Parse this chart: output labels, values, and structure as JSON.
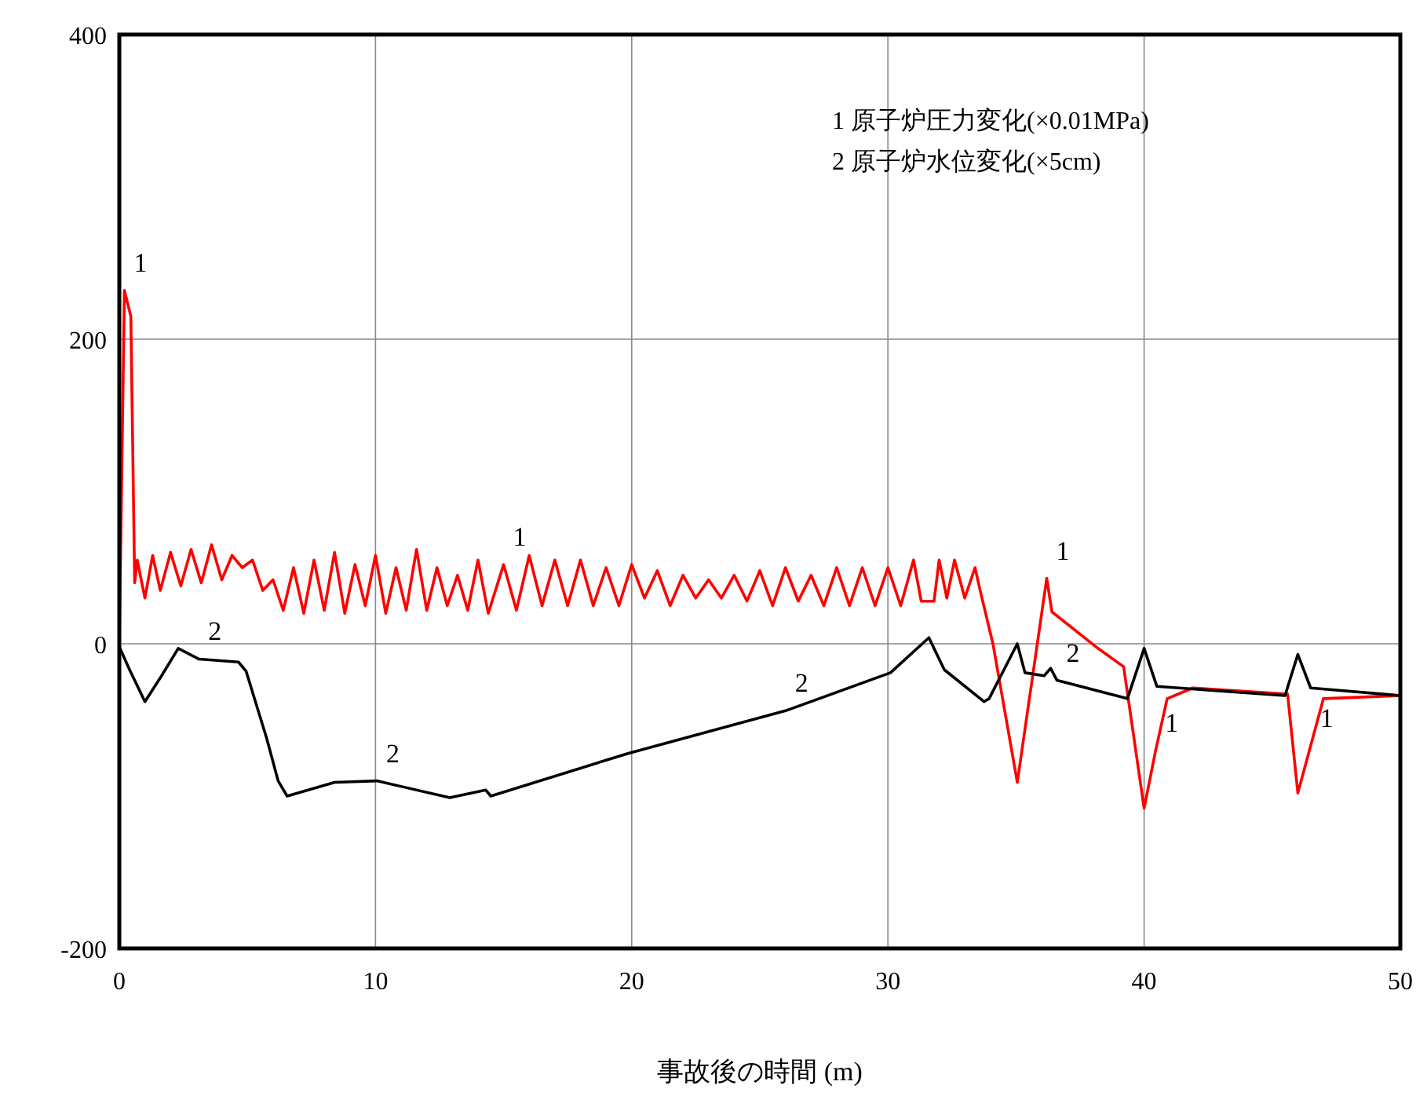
{
  "chart_data": {
    "type": "line",
    "xlabel": "事故後の時間 (m)",
    "xlim": [
      0,
      50
    ],
    "xticks": [
      0,
      10,
      20,
      30,
      40,
      50
    ],
    "ylim": [
      -200,
      400
    ],
    "yticks": [
      -200,
      0,
      200,
      400
    ],
    "grid": true,
    "marker": "none",
    "line_style": "solid",
    "annotations": [
      "1 原子炉圧力変化(×0.01MPa)",
      "2 原子炉水位変化(×5cm)",
      {
        "text": "1",
        "x": 0.2,
        "y": 232
      },
      {
        "text": "1",
        "x": 15,
        "y": 52
      },
      {
        "text": "1",
        "x": 36.2,
        "y": 43
      },
      {
        "text": "1",
        "x": 40.45,
        "y": -70
      },
      {
        "text": "1",
        "x": 46.5,
        "y": -67
      },
      {
        "text": "2",
        "x": 3.1,
        "y": -10
      },
      {
        "text": "2",
        "x": 10.05,
        "y": -90
      },
      {
        "text": "2",
        "x": 26,
        "y": -44
      },
      {
        "text": "2",
        "x": 36.6,
        "y": -24
      }
    ],
    "series": [
      {
        "color": "#ff0000",
        "x": [
          0,
          0.2,
          0.45,
          0.6,
          0.7,
          1.0,
          1.3,
          1.6,
          2.0,
          2.4,
          2.8,
          3.2,
          3.6,
          4.0,
          4.4,
          4.8,
          5.2,
          5.6,
          6.0,
          6.4,
          6.8,
          7.2,
          7.6,
          8.0,
          8.4,
          8.8,
          9.2,
          9.6,
          10.0,
          10.4,
          10.8,
          11.2,
          11.6,
          12.0,
          12.4,
          12.8,
          13.2,
          13.6,
          14.0,
          14.4,
          15,
          15.5,
          16,
          16.5,
          17,
          17.5,
          18,
          18.5,
          19,
          19.5,
          20,
          20.5,
          21,
          21.5,
          22,
          22.5,
          23,
          23.5,
          24,
          24.5,
          25,
          25.5,
          26,
          26.5,
          27,
          27.5,
          28,
          28.5,
          29,
          29.5,
          30,
          30.5,
          31,
          31.3,
          31.8,
          32,
          32.3,
          32.6,
          33,
          33.4,
          33.6,
          34.1,
          35.05,
          36.2,
          36.4,
          38.2,
          39.2,
          40.0,
          40.45,
          40.9,
          41.9,
          45.6,
          46.0,
          46.5,
          47.0,
          50
        ],
        "values": [
          0,
          232,
          215,
          40,
          55,
          30,
          58,
          35,
          60,
          38,
          62,
          40,
          65,
          42,
          58,
          50,
          55,
          35,
          42,
          22,
          50,
          20,
          55,
          22,
          60,
          20,
          52,
          25,
          58,
          20,
          50,
          22,
          62,
          22,
          50,
          25,
          45,
          22,
          55,
          20,
          52,
          22,
          58,
          25,
          55,
          25,
          55,
          25,
          50,
          25,
          52,
          30,
          48,
          25,
          45,
          30,
          42,
          30,
          45,
          28,
          48,
          25,
          50,
          28,
          45,
          25,
          50,
          25,
          50,
          25,
          50,
          25,
          55,
          28,
          28,
          55,
          30,
          55,
          30,
          50,
          35,
          0,
          -91,
          43,
          21,
          -3,
          -15,
          -108,
          -70,
          -36,
          -29,
          -33,
          -98,
          -67,
          -36,
          -34
        ]
      },
      {
        "color": "#000000",
        "x": [
          0,
          0.4,
          1.0,
          1.65,
          2.3,
          3.1,
          4.65,
          4.95,
          5.75,
          6.2,
          6.55,
          8.4,
          10.05,
          12.9,
          14.3,
          14.5,
          19.85,
          26,
          30.1,
          31.6,
          32.2,
          33.75,
          33.95,
          35.05,
          35.35,
          36.1,
          36.35,
          36.6,
          39.35,
          40.0,
          40.5,
          45.5,
          46.0,
          46.5,
          50
        ],
        "values": [
          -2,
          -17,
          -38,
          -21,
          -3,
          -10,
          -12,
          -18,
          -62,
          -90,
          -100,
          -91,
          -90,
          -101,
          -96,
          -100,
          -72,
          -44,
          -19,
          4,
          -17,
          -38,
          -36,
          0,
          -19,
          -21,
          -16,
          -24,
          -36,
          -3,
          -28,
          -34,
          -7,
          -29,
          -34
        ]
      }
    ]
  }
}
